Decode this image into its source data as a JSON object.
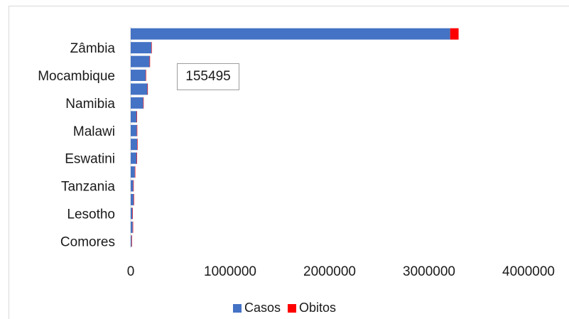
{
  "chart_data": {
    "type": "bar",
    "orientation": "horizontal",
    "stacked": true,
    "categories": [
      "Comores",
      "",
      "Lesotho",
      "",
      "Tanzania",
      "",
      "Eswatini",
      "",
      "Malawi",
      "",
      "Namibia",
      "",
      "Mocambique",
      "",
      "Zâmbia",
      ""
    ],
    "labeled_categories": [
      "Comores",
      "Lesotho",
      "Tanzania",
      "Eswatini",
      "Malawi",
      "Namibia",
      "Mocambique",
      "Zâmbia"
    ],
    "series": [
      {
        "name": "Casos",
        "color": "#4472C4",
        "values": [
          9000,
          20000,
          17000,
          30000,
          26000,
          42000,
          60000,
          66000,
          62000,
          60000,
          126000,
          168000,
          150000,
          190000,
          208000,
          3212000
        ]
      },
      {
        "name": "Obitos",
        "color": "#FF0000",
        "values": [
          160,
          360,
          700,
          730,
          760,
          1200,
          1100,
          2100,
          2300,
          1000,
          3500,
          3200,
          2000,
          4600,
          3700,
          85000
        ]
      }
    ],
    "x_ticks": [
      "0",
      "1000000",
      "2000000",
      "3000000",
      "4000000"
    ],
    "xlim": [
      0,
      4000000
    ],
    "annotation": "155495",
    "legend_position": "bottom",
    "grid": false
  }
}
